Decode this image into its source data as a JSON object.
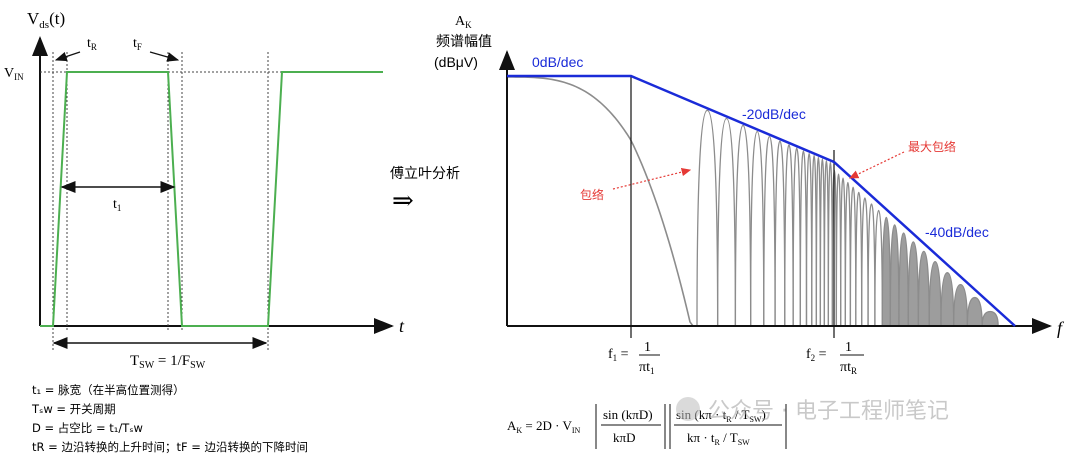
{
  "left": {
    "y_axis": "V",
    "y_axis_sub": "ds",
    "y_axis_arg": "(t)",
    "x_axis": "t",
    "vin": "V",
    "vin_sub": "IN",
    "tr": "t",
    "tr_sub": "R",
    "tf": "t",
    "tf_sub": "F",
    "t1": "t",
    "t1_sub": "1",
    "tsw_label": "T",
    "tsw_sub": "SW",
    "tsw_eq": " = 1/F",
    "tsw_eq_sub": "SW"
  },
  "notes": [
    "t₁ = 脉宽（在半高位置测得）",
    "Tₛw = 开关周期",
    "D = 占空比 = t₁/Tₛw",
    "tR = 边沿转换的上升时间；tF = 边沿转换的下降时间"
  ],
  "middle": {
    "transform_label": "傅立叶分析",
    "arrow_symbol": "⇒"
  },
  "right": {
    "y_title_1": "A",
    "y_title_1_sub": "K",
    "y_title_2": "频谱幅值",
    "y_title_3": "(dBμV)",
    "x_axis": "f",
    "slope_0": "0dB/dec",
    "slope_20": "-20dB/dec",
    "slope_40": "-40dB/dec",
    "envelope": "包络",
    "max_envelope": "最大包络",
    "f1": "f",
    "f1_sub": "1",
    "f1_num": "1",
    "f1_den": "πt",
    "f1_den_sub": "1",
    "f2": "f",
    "f2_sub": "2",
    "f2_num": "1",
    "f2_den": "πt",
    "f2_den_sub": "R"
  },
  "formula": {
    "lhs": "A",
    "lhs_sub": "K",
    "mid": " = 2D · V",
    "mid_sub": "IN",
    "frac1_num": "sin (kπD)",
    "frac1_den": "kπD",
    "frac2_num": "sin (kπ · t",
    "frac2_num_sub": "R",
    "frac2_num_tail": " / T",
    "frac2_num_tail_sub": "SW",
    "frac2_num_close": ")",
    "frac2_den": "kπ · t",
    "frac2_den_sub": "R",
    "frac2_den_tail": " / T",
    "frac2_den_tail_sub": "SW"
  },
  "watermark": "公众号 · 电子工程师笔记",
  "colors": {
    "waveform": "#4caf50",
    "envelope": "#1a2bd8",
    "spectrum": "#8c8c8c",
    "annotation_red": "#e53935",
    "slope_text": "#1a2bd8"
  }
}
